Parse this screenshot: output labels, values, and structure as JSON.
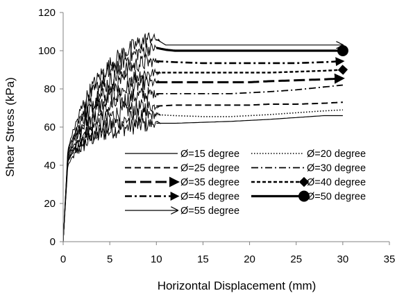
{
  "chart_data": {
    "type": "line",
    "title": "",
    "xlabel": "Horizontal Displacement (mm)",
    "ylabel": "Shear Stress (kPa)",
    "xlim": [
      0,
      35
    ],
    "ylim": [
      0,
      120
    ],
    "xticks": [
      0,
      5,
      10,
      15,
      20,
      25,
      30,
      35
    ],
    "yticks": [
      0,
      20,
      40,
      60,
      80,
      100,
      120
    ],
    "grid": false,
    "legend_position": "lower-right, inside plot, two columns",
    "series": [
      {
        "name": "Ø=15 degree",
        "style": "solid-thin",
        "marker": "none",
        "x": [
          0,
          0.5,
          1,
          1.5,
          2,
          3,
          4,
          5,
          6,
          7,
          8,
          9,
          10,
          12,
          15,
          18,
          20,
          22,
          25,
          28,
          30
        ],
        "y": [
          0,
          40,
          44,
          47,
          50,
          54,
          56,
          58,
          59,
          60,
          61,
          61.5,
          62,
          62,
          62.5,
          63,
          63.5,
          64,
          65,
          66,
          66
        ]
      },
      {
        "name": "Ø=20 degree",
        "style": "dotted",
        "marker": "none",
        "x": [
          0,
          0.5,
          1,
          2,
          3,
          4,
          5,
          6,
          7,
          8,
          9,
          10,
          12,
          15,
          18,
          20,
          22,
          25,
          28,
          30
        ],
        "y": [
          0,
          42,
          46,
          52,
          56,
          59,
          61,
          62.5,
          64,
          65,
          66,
          66.5,
          66,
          65.5,
          65.5,
          66,
          66.5,
          67.5,
          68.5,
          69
        ]
      },
      {
        "name": "Ø=25 degree",
        "style": "dashed",
        "marker": "none",
        "x": [
          0,
          0.5,
          1,
          2,
          3,
          4,
          5,
          6,
          7,
          8,
          9,
          10,
          12,
          15,
          18,
          20,
          22,
          25,
          28,
          30
        ],
        "y": [
          0,
          42,
          47,
          54,
          59,
          63,
          65.5,
          67.5,
          69,
          70,
          70.5,
          71,
          71.5,
          71.5,
          71.5,
          71.5,
          72,
          72,
          72.5,
          73
        ]
      },
      {
        "name": "Ø=30 degree",
        "style": "dash-dot",
        "marker": "none",
        "x": [
          0,
          0.5,
          1,
          2,
          3,
          4,
          5,
          6,
          7,
          8,
          9,
          10,
          12,
          15,
          18,
          20,
          22,
          25,
          28,
          30
        ],
        "y": [
          0,
          43,
          48,
          56,
          62,
          67,
          70.5,
          73,
          75,
          76.5,
          77,
          77.5,
          77.5,
          77.5,
          77.5,
          78,
          78.5,
          79.5,
          81,
          82
        ]
      },
      {
        "name": "Ø=35 degree",
        "style": "long-dash-bold",
        "marker": "arrow",
        "x": [
          0,
          0.5,
          1,
          2,
          3,
          4,
          5,
          6,
          7,
          8,
          9,
          10,
          12,
          15,
          18,
          20,
          22,
          25,
          28,
          30
        ],
        "y": [
          0,
          44,
          50,
          59,
          66,
          71.5,
          75.5,
          78.5,
          80.5,
          82,
          83,
          83.5,
          83.5,
          83.5,
          83.5,
          83.5,
          84,
          84.5,
          85,
          85.5
        ]
      },
      {
        "name": "Ø=40 degree",
        "style": "short-dash",
        "marker": "diamond",
        "x": [
          0,
          0.5,
          1,
          2,
          3,
          4,
          5,
          6,
          7,
          8,
          9,
          10,
          12,
          15,
          18,
          20,
          22,
          25,
          28,
          30
        ],
        "y": [
          0,
          45,
          51,
          61,
          69,
          75,
          79.5,
          83,
          85.5,
          87,
          88,
          88.5,
          88.5,
          88.5,
          88.5,
          88.5,
          88.5,
          89,
          89.5,
          90
        ]
      },
      {
        "name": "Ø=45 degree",
        "style": "dash-dot-bold",
        "marker": "arrow",
        "x": [
          0,
          0.5,
          1,
          2,
          3,
          4,
          5,
          6,
          7,
          8,
          9,
          10,
          12,
          15,
          18,
          20,
          22,
          25,
          28,
          30
        ],
        "y": [
          0,
          46,
          53,
          64,
          72,
          79,
          84,
          88,
          91,
          93,
          94,
          94.5,
          94,
          93.5,
          93.5,
          93.5,
          93.5,
          93.5,
          94,
          94.5
        ]
      },
      {
        "name": "Ø=50 degree",
        "style": "solid-bold",
        "marker": "circle",
        "x": [
          0,
          0.5,
          1,
          2,
          3,
          4,
          5,
          6,
          7,
          8,
          9,
          10,
          11,
          12,
          15,
          18,
          20,
          22,
          25,
          28,
          30
        ],
        "y": [
          0,
          47,
          55,
          67,
          76,
          83,
          88.5,
          93,
          96.5,
          99,
          101,
          101.5,
          100.5,
          100,
          100,
          100,
          100,
          100,
          100,
          100,
          100
        ]
      },
      {
        "name": "Ø=55 degree",
        "style": "solid-thin",
        "marker": "open-arrow",
        "x": [
          0,
          0.5,
          1,
          2,
          3,
          4,
          5,
          6,
          7,
          8,
          9,
          9.5,
          10,
          10.5,
          11,
          12,
          15,
          18,
          20,
          22,
          25,
          28,
          30
        ],
        "y": [
          0,
          48,
          57,
          70,
          80,
          87,
          92.5,
          97,
          100.5,
          103.5,
          106,
          107,
          106,
          104.5,
          103,
          103,
          103,
          103,
          103,
          103,
          103,
          103,
          103
        ]
      }
    ]
  }
}
